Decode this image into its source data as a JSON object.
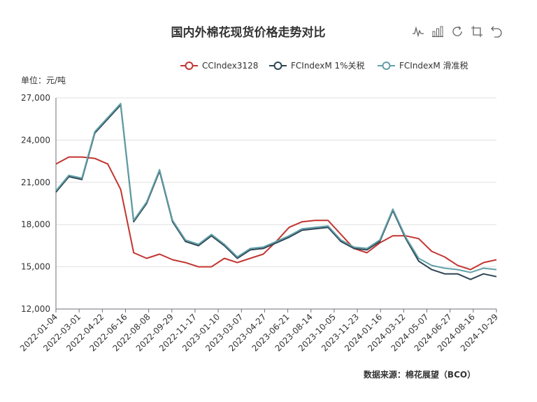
{
  "chart_data": {
    "type": "line",
    "title": "国内外棉花现货价格走势对比",
    "unit_label": "单位：元/吨",
    "source": "数据来源：棉花展望（BCO）",
    "x_ticks": [
      "2022-01-04",
      "2022-03-01",
      "2022-04-22",
      "2022-06-16",
      "2022-08-08",
      "2022-09-29",
      "2022-11-17",
      "2023-01-10",
      "2023-03-07",
      "2023-04-27",
      "2023-06-21",
      "2023-08-14",
      "2023-10-05",
      "2023-11-23",
      "2024-01-16",
      "2024-03-12",
      "2024-05-07",
      "2024-06-27",
      "2024-08-16",
      "2024-10-29"
    ],
    "y_ticks": [
      "27,000",
      "24,000",
      "21,000",
      "18,000",
      "15,000",
      "12,000"
    ],
    "ylim": [
      12000,
      27000
    ],
    "grid": true,
    "legend_position": "top-right",
    "x": [
      "2022-01",
      "2022-02",
      "2022-03",
      "2022-04",
      "2022-05",
      "2022-06",
      "2022-07",
      "2022-08",
      "2022-09",
      "2022-10",
      "2022-11",
      "2022-12",
      "2023-01",
      "2023-02",
      "2023-03",
      "2023-04",
      "2023-05",
      "2023-06",
      "2023-07",
      "2023-08",
      "2023-09",
      "2023-10",
      "2023-11",
      "2023-12",
      "2024-01",
      "2024-02",
      "2024-03",
      "2024-04",
      "2024-05",
      "2024-06",
      "2024-07",
      "2024-08",
      "2024-09",
      "2024-10",
      "2024-11"
    ],
    "series": [
      {
        "name": "CCIndex3128",
        "color": "#c23531",
        "values": [
          22300,
          22800,
          22800,
          22700,
          22300,
          20500,
          16000,
          15600,
          15900,
          15500,
          15300,
          15000,
          15000,
          15600,
          15300,
          15600,
          15900,
          16800,
          17800,
          18200,
          18300,
          18300,
          17300,
          16300,
          16000,
          16700,
          17200,
          17200,
          17000,
          16100,
          15700,
          15100,
          14800,
          15300,
          15500
        ]
      },
      {
        "name": "FCIndexM 1%关税",
        "color": "#2f4554",
        "values": [
          20300,
          21400,
          21200,
          24500,
          25500,
          26500,
          18200,
          19500,
          21800,
          18200,
          16800,
          16500,
          17200,
          16500,
          15600,
          16200,
          16300,
          16700,
          17100,
          17600,
          17700,
          17800,
          16800,
          16300,
          16200,
          16800,
          19000,
          17000,
          15400,
          14800,
          14500,
          14500,
          14100,
          14500,
          14300
        ]
      },
      {
        "name": "FCIndexM 滑准税",
        "color": "#61a0a8",
        "values": [
          20400,
          21500,
          21300,
          24600,
          25600,
          26600,
          18300,
          19600,
          21900,
          18300,
          16900,
          16600,
          17300,
          16600,
          15700,
          16300,
          16400,
          16800,
          17200,
          17700,
          17800,
          17900,
          16900,
          16400,
          16300,
          16900,
          19100,
          17100,
          15600,
          15100,
          14900,
          14800,
          14600,
          14900,
          14800
        ]
      }
    ]
  },
  "toolbox": {
    "line_icon": "line-chart-icon",
    "bar_icon": "bar-chart-icon",
    "restore_icon": "restore-icon",
    "crop_icon": "crop-icon",
    "back_icon": "back-icon"
  }
}
